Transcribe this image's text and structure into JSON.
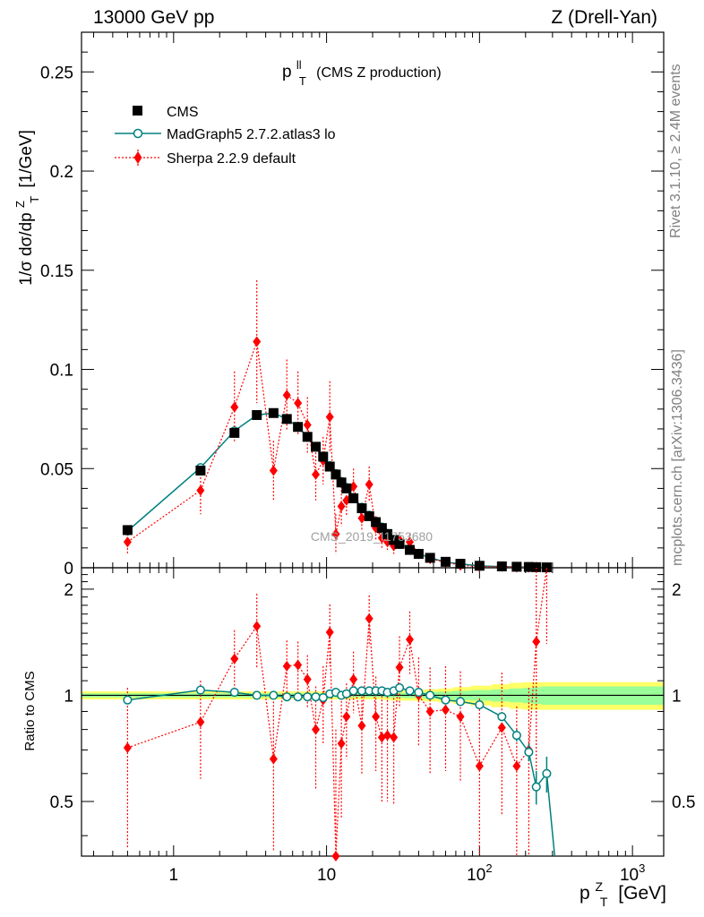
{
  "header": {
    "left": "13000 GeV pp",
    "right": "Z (Drell-Yan)"
  },
  "side_labels": {
    "rivet": "Rivet 3.1.10, ≥ 2.4M events",
    "mcplots": "mcplots.cern.ch [arXiv:1306.3436]"
  },
  "plot_title": {
    "var": "p",
    "sup": "ll",
    "sub": "T",
    "rest": "(CMS Z production)"
  },
  "watermark": "CMS_2019_I1753680",
  "axes": {
    "ylabel_main": "1/σ dσ/dp",
    "ylabel_main_sup": "Z",
    "ylabel_main_sub": "T",
    "ylabel_main_unit": "[1/GeV]",
    "ylabel_ratio": "Ratio to CMS",
    "xlabel": "p",
    "xlabel_sup": "Z",
    "xlabel_sub": "T",
    "xlabel_unit": "[GeV]"
  },
  "legend": [
    {
      "label": "CMS",
      "color": "#000000",
      "marker": "square"
    },
    {
      "label": "MadGraph5 2.7.2.atlas3 lo",
      "color": "#008080",
      "marker": "open-circle"
    },
    {
      "label": "Sherpa 2.2.9 default",
      "color": "#ff0000",
      "marker": "diamond"
    }
  ],
  "chart_data": {
    "type": "scatter",
    "xscale": "log",
    "xlim": [
      0.25,
      1600
    ],
    "main": {
      "ylim": [
        0,
        0.27
      ],
      "yticks": [
        0,
        0.05,
        0.1,
        0.15,
        0.2,
        0.25
      ],
      "ytick_labels": [
        "0",
        "0.05",
        "0.1",
        "0.15",
        "0.2",
        "0.25"
      ]
    },
    "ratio": {
      "ylim": [
        0.35,
        2.3
      ],
      "yticks": [
        0.5,
        1,
        2
      ],
      "ytick_labels": [
        "0.5",
        "1",
        "2"
      ],
      "band_inner_frac": [
        0.013,
        0.013,
        0.013,
        0.013,
        0.013,
        0.013,
        0.013,
        0.013,
        0.013,
        0.013,
        0.013,
        0.013,
        0.013,
        0.013,
        0.013,
        0.013,
        0.013,
        0.013,
        0.013,
        0.015,
        0.017,
        0.017,
        0.018,
        0.018,
        0.022,
        0.025,
        0.03,
        0.035,
        0.04,
        0.045,
        0.05,
        0.055,
        0.06
      ],
      "band_outer_frac": [
        0.026,
        0.026,
        0.026,
        0.026,
        0.026,
        0.026,
        0.026,
        0.026,
        0.026,
        0.026,
        0.026,
        0.026,
        0.026,
        0.026,
        0.026,
        0.026,
        0.026,
        0.026,
        0.026,
        0.03,
        0.033,
        0.033,
        0.035,
        0.035,
        0.04,
        0.045,
        0.055,
        0.065,
        0.075,
        0.085,
        0.09,
        0.09,
        0.09
      ]
    },
    "xtick_labels": [
      "1",
      "10",
      "10^2",
      "10^3"
    ],
    "x": [
      0.5,
      1.5,
      2.5,
      3.5,
      4.5,
      5.5,
      6.5,
      7.5,
      8.5,
      9.5,
      10.5,
      11.5,
      12.5,
      13.5,
      15,
      17,
      19,
      21,
      23,
      25,
      27.5,
      30,
      35,
      40,
      47.5,
      60,
      75,
      100,
      140,
      175,
      210,
      235,
      275
    ],
    "series": [
      {
        "name": "CMS",
        "values": [
          0.019,
          0.049,
          0.068,
          0.077,
          0.078,
          0.075,
          0.071,
          0.066,
          0.061,
          0.056,
          0.051,
          0.047,
          0.043,
          0.04,
          0.035,
          0.03,
          0.026,
          0.023,
          0.02,
          0.017,
          0.014,
          0.012,
          0.009,
          0.007,
          0.005,
          0.003,
          0.002,
          0.001,
          0.0007,
          0.0005,
          0.0004,
          0.0003,
          0.0002
        ]
      },
      {
        "name": "MadGraph5 2.7.2.atlas3 lo",
        "values": [
          0.0185,
          0.0505,
          0.069,
          0.077,
          0.078,
          0.075,
          0.071,
          0.066,
          0.061,
          0.0555,
          0.0515,
          0.0475,
          0.0435,
          0.0405,
          0.0355,
          0.0305,
          0.0265,
          0.0235,
          0.0205,
          0.0173,
          0.0143,
          0.0123,
          0.0093,
          0.0071,
          0.005,
          0.0029,
          0.0019,
          0.00095,
          0.0006,
          0.00039,
          0.00028,
          0.00017,
          0.00012
        ],
        "ratio": [
          0.97,
          1.035,
          1.02,
          1.0,
          1.0,
          0.99,
          0.99,
          0.99,
          0.99,
          0.985,
          1.01,
          1.02,
          1.0,
          1.01,
          1.03,
          1.03,
          1.03,
          1.03,
          1.03,
          1.02,
          1.03,
          1.05,
          1.03,
          1.02,
          1.0,
          0.97,
          0.96,
          0.94,
          0.87,
          0.77,
          0.69,
          0.55,
          0.6
        ],
        "ratio_err": [
          0.01,
          0.01,
          0.01,
          0.01,
          0.01,
          0.01,
          0.01,
          0.01,
          0.01,
          0.01,
          0.01,
          0.01,
          0.01,
          0.01,
          0.01,
          0.01,
          0.01,
          0.01,
          0.01,
          0.01,
          0.01,
          0.01,
          0.01,
          0.01,
          0.01,
          0.01,
          0.01,
          0.015,
          0.02,
          0.03,
          0.04,
          0.06,
          0.07
        ]
      },
      {
        "name": "Sherpa 2.2.9 default",
        "values": [
          0.013,
          0.039,
          0.081,
          0.114,
          0.049,
          0.087,
          0.083,
          0.072,
          0.047,
          0.054,
          0.076,
          0.017,
          0.031,
          0.034,
          0.041,
          0.025,
          0.042,
          0.02,
          0.015,
          0.013,
          0.011,
          0.014,
          0.013,
          0.007,
          0.0045,
          0.0028,
          0.0012,
          0.0006,
          0.0006,
          0.0003,
          0.0002,
          0.0004,
          0.0001
        ],
        "errors": [
          0.006,
          0.012,
          0.018,
          0.031,
          0.015,
          0.018,
          0.016,
          0.014,
          0.013,
          0.012,
          0.018,
          0.01,
          0.01,
          0.008,
          0.009,
          0.006,
          0.009,
          0.006,
          0.005,
          0.004,
          0.004,
          0.004,
          0.004,
          0.002,
          0.0016,
          0.001,
          0.0005,
          0.0003,
          0.0003,
          0.0002,
          0.0002,
          0.0003,
          0.0001
        ],
        "ratio": [
          0.71,
          0.84,
          1.27,
          1.57,
          0.66,
          1.21,
          1.22,
          1.11,
          0.8,
          0.97,
          1.51,
          0.35,
          0.73,
          0.87,
          1.11,
          0.82,
          1.65,
          0.87,
          0.76,
          0.77,
          0.76,
          1.2,
          1.44,
          1.0,
          0.9,
          0.91,
          0.87,
          0.63,
          0.81,
          0.63,
          0.7,
          1.42,
          2.4
        ],
        "ratio_err": [
          0.34,
          0.26,
          0.26,
          0.37,
          0.3,
          0.22,
          0.2,
          0.19,
          0.26,
          0.24,
          0.3,
          0.45,
          0.28,
          0.21,
          0.22,
          0.22,
          0.27,
          0.26,
          0.26,
          0.27,
          0.27,
          0.27,
          0.29,
          0.28,
          0.3,
          0.3,
          0.3,
          0.35,
          0.35,
          0.3,
          0.35,
          0.9,
          1.0
        ]
      }
    ]
  }
}
